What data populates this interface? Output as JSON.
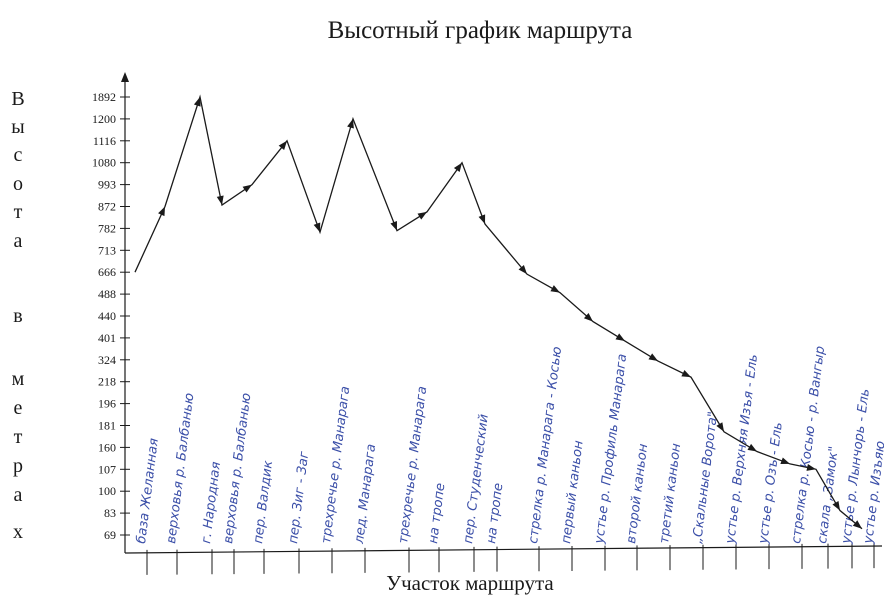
{
  "chart_data": {
    "type": "line",
    "title": "Высотный график маршрута",
    "xlabel": "Участок маршрута",
    "ylabel": "Высота в метрах",
    "ylabel_letters": [
      "В",
      "ы",
      "с",
      "о",
      "т",
      "а",
      "в",
      "м",
      "е",
      "т",
      "р",
      "а",
      "х"
    ],
    "y_ticks": [
      "69",
      "83",
      "100",
      "107",
      "160",
      "181",
      "196",
      "218",
      "324",
      "401",
      "440",
      "488",
      "666",
      "713",
      "782",
      "872",
      "993",
      "1080",
      "1116",
      "1200",
      "1892"
    ],
    "categories": [
      "база Желанная",
      "верховья р. Балбанью",
      "г. Народная",
      "верховья р. Балбанью",
      "пер. Валдик",
      "пер. Зиг - Заг",
      "трехречье р. Манарага",
      "лед. Манарага",
      "трехречье р. Манарага",
      "на тропе",
      "пер. Студенческий",
      "на тропе",
      "стрелка р. Манарага - Косью",
      "первый каньон",
      "устье р. Профиль Манарага",
      "второй каньон",
      "третий каньон",
      "„Скальные Ворота\"",
      "устье р. Верхняя Изъя - Ель",
      "устье р. Озъ - Ель",
      "стрелка р. Косью - р. Вангыр",
      "скала „Замок\"",
      "устье р. Лынчорь - Ель",
      "устье р. Изъяю"
    ],
    "series": [
      {
        "values": [
          666,
          872,
          1892,
          880,
          993,
          1116,
          770,
          1200,
          775,
          850,
          1080,
          800,
          650,
          500,
          430,
          390,
          318,
          240,
          175,
          150,
          120,
          107,
          85,
          73
        ]
      }
    ],
    "grid": false,
    "legend": "none"
  },
  "colors": {
    "ink": "#1a1a1a",
    "handwriting": "#3b4fa8",
    "background": "#ffffff"
  }
}
